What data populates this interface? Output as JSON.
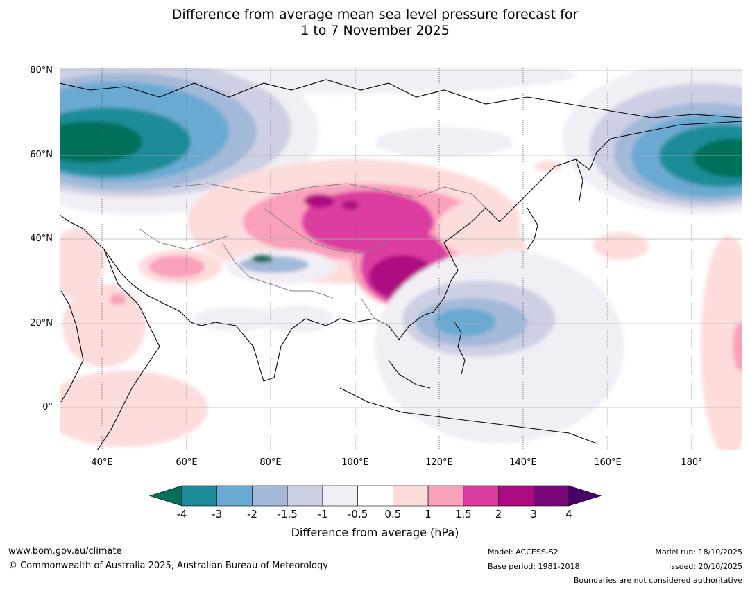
{
  "title": {
    "line1": "Difference from average mean sea level pressure forecast for",
    "line2": "1 to 7 November 2025"
  },
  "map": {
    "lat_labels": [
      "80°N",
      "60°N",
      "40°N",
      "20°N",
      "0°"
    ],
    "lon_labels": [
      "40°E",
      "60°E",
      "80°E",
      "100°E",
      "120°E",
      "140°E",
      "160°E",
      "180°"
    ],
    "extent": {
      "lon_min": 30,
      "lon_max": 191,
      "lat_min": -10,
      "lat_max": 81
    },
    "anomaly_features": [
      "Strong negative anomaly over western Russia / Scandinavia",
      "Strong negative anomaly over Bering Sea / Alaska",
      "Positive anomaly (high pressure) over Mongolia and eastern China",
      "Negative anomaly over western Pacific east of the Philippines",
      "Small negative anomaly over Karakoram"
    ]
  },
  "colorbar": {
    "ticks": [
      "-4",
      "-3",
      "-2",
      "-1.5",
      "-1",
      "-0.5",
      "0.5",
      "1",
      "1.5",
      "2",
      "3",
      "4"
    ],
    "colors": [
      "#1a8c99",
      "#6aaad2",
      "#a3b9d9",
      "#cdd0e4",
      "#f2eef5",
      "#ffffff",
      "#fddcdc",
      "#f9a0bb",
      "#db3da0",
      "#ad0b81",
      "#7a077a"
    ],
    "under_color": "#04705a",
    "over_color": "#49006a",
    "label": "Difference from average (hPa)"
  },
  "footer": {
    "website": "www.bom.gov.au/climate",
    "copyright": "© Commonwealth of Australia 2025, Australian Bureau of Meteorology",
    "model": "Model: ACCESS-S2",
    "base_period": "Base period: 1981-2018",
    "model_run": "Model run: 18/10/2025",
    "issued": "Issued: 20/10/2025",
    "disclaimer": "Boundaries are not considered authoritative"
  }
}
